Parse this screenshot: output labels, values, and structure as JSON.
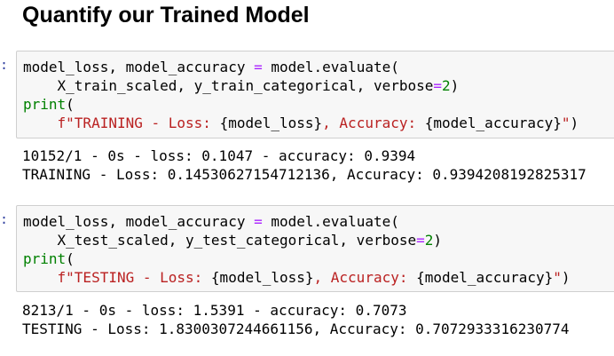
{
  "header": {
    "title": "Quantify our Trained Model"
  },
  "cells": [
    {
      "prompt": ":",
      "code": [
        [
          "model_loss, model_accuracy ",
          "=",
          " model.evaluate("
        ],
        [
          "    X_train_scaled, y_train_categorical, verbose",
          "=",
          "2",
          ")"
        ],
        [
          "print",
          "("
        ],
        [
          "    ",
          "f\"TRAINING - Loss: ",
          "{model_loss}",
          ", Accuracy: ",
          "{model_accuracy}",
          "\"",
          ")"
        ]
      ],
      "output": [
        "10152/1 - 0s - loss: 0.1047 - accuracy: 0.9394",
        "TRAINING - Loss: 0.14530627154712136, Accuracy: 0.9394208192825317"
      ]
    },
    {
      "prompt": ":",
      "code": [
        [
          "model_loss, model_accuracy ",
          "=",
          " model.evaluate("
        ],
        [
          "    X_test_scaled, y_test_categorical, verbose",
          "=",
          "2",
          ")"
        ],
        [
          "print",
          "("
        ],
        [
          "    ",
          "f\"TESTING - Loss: ",
          "{model_loss}",
          ", Accuracy: ",
          "{model_accuracy}",
          "\"",
          ")"
        ]
      ],
      "output": [
        "8213/1 - 0s - loss: 1.5391 - accuracy: 0.7073",
        "TESTING - Loss: 1.8300307244661156, Accuracy: 0.7072933316230774"
      ]
    }
  ]
}
